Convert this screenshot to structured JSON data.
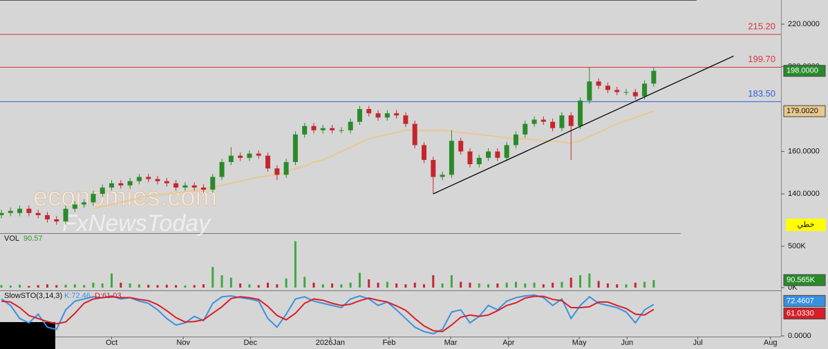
{
  "chart_data": [
    {
      "type": "candlestick",
      "up_color": "#2a8a2a",
      "down_color": "#c4262e",
      "open": [
        130,
        131,
        131,
        133,
        131,
        130,
        128,
        127,
        133,
        135,
        136,
        140,
        143,
        145,
        144,
        146,
        148,
        147,
        146,
        145,
        143,
        144,
        143,
        142,
        148,
        155,
        158,
        157,
        159,
        158,
        152,
        149,
        155,
        168,
        172,
        170,
        171,
        170,
        170,
        174,
        180,
        178,
        176,
        178,
        177,
        173,
        163,
        156,
        148,
        149,
        165,
        160,
        154,
        157,
        160,
        157,
        163,
        168,
        173,
        175,
        174,
        171,
        177,
        172,
        184,
        193,
        191,
        189,
        188,
        188,
        186,
        192
      ],
      "high": [
        132.5,
        133.5,
        134.5,
        134.5,
        132.5,
        131.5,
        129.5,
        134.5,
        136.5,
        137.5,
        141.5,
        144.5,
        146.5,
        146.5,
        147.5,
        149.5,
        149.5,
        148.5,
        147.5,
        146.5,
        145.5,
        145.5,
        144.5,
        149.5,
        156.5,
        162,
        159.5,
        160.5,
        160.5,
        159.5,
        153.5,
        156.5,
        169.5,
        173.5,
        173.5,
        172.5,
        172.5,
        171.5,
        175.5,
        181.5,
        181.5,
        179.5,
        179.5,
        179.5,
        178.5,
        174.5,
        164.5,
        157.5,
        150.5,
        170,
        166.5,
        161.5,
        158.5,
        161.5,
        161.5,
        164.5,
        169.5,
        174.5,
        176.5,
        176.5,
        175.5,
        178.5,
        178.5,
        185.5,
        199.7,
        194.5,
        192.5,
        190.5,
        189.5,
        189.5,
        193.5,
        199.5
      ],
      "low": [
        128.5,
        129.5,
        129.5,
        129.5,
        128.5,
        126.5,
        125.5,
        125.5,
        131.5,
        133.5,
        134.5,
        138.5,
        141.5,
        142.5,
        142.5,
        144.5,
        145.5,
        144.5,
        143.5,
        141.5,
        141.5,
        141.5,
        140.5,
        140.5,
        146.5,
        153.5,
        155.5,
        155.5,
        156.5,
        150.5,
        146.5,
        147.5,
        153.5,
        166.5,
        168.5,
        168.5,
        168.5,
        168.5,
        168.5,
        172.5,
        176.5,
        174.5,
        174.5,
        175.5,
        171.5,
        161.5,
        154.5,
        140,
        146.5,
        147.5,
        158.5,
        152.5,
        152.5,
        155.5,
        155.5,
        155.5,
        161.5,
        166.5,
        171.5,
        172.5,
        169.5,
        169.5,
        156,
        170.5,
        182.5,
        189.5,
        187.5,
        186.5,
        186.5,
        184.5,
        184.5,
        190.5
      ],
      "close": [
        131,
        132,
        133,
        131,
        130,
        128,
        127,
        133,
        135,
        136,
        140,
        143,
        145,
        144,
        146,
        148,
        147,
        146,
        145,
        143,
        144,
        143,
        142,
        148,
        155,
        158,
        157,
        159,
        158,
        152,
        149,
        155,
        168,
        172,
        170,
        171,
        170,
        170,
        174,
        180,
        178,
        176,
        178,
        177,
        173,
        163,
        156,
        148,
        149,
        165,
        160,
        154,
        157,
        160,
        157,
        163,
        168,
        173,
        175,
        174,
        171,
        177,
        172,
        184,
        193,
        191,
        189,
        188,
        188,
        186,
        192,
        198
      ],
      "last_label": "198.0000",
      "moving_average": {
        "color": "#e8c98f",
        "last_label": "179.0020",
        "values": [
          null,
          null,
          null,
          null,
          null,
          null,
          null,
          null,
          null,
          null,
          133,
          134,
          135,
          136,
          137,
          138,
          139,
          139.5,
          140,
          140.5,
          141,
          141.5,
          142,
          143,
          144,
          145,
          146,
          147,
          148,
          148.5,
          149,
          150,
          152,
          153,
          155,
          156,
          158,
          160,
          162,
          164,
          166,
          167,
          168,
          169,
          170,
          170,
          170,
          170,
          170,
          169.5,
          169,
          168.5,
          168,
          167.5,
          167,
          166.5,
          166,
          166,
          165.5,
          165,
          165,
          164.5,
          164,
          165,
          167,
          169,
          171,
          173,
          174.5,
          176,
          177.5,
          179
        ]
      },
      "hlines": [
        {
          "value": 215.2,
          "label": "215.20",
          "color": "#e0303a"
        },
        {
          "value": 199.7,
          "label": "199.70",
          "color": "#e0303a"
        },
        {
          "value": 183.5,
          "label": "183.50",
          "color": "#2f5fd8"
        }
      ],
      "trend_line": {
        "x": [
          47,
          79.7
        ],
        "y": [
          140,
          205
        ],
        "color": "#000000"
      },
      "xlim": [
        -0.15,
        84.7
      ],
      "xticks": [
        {
          "value": 12,
          "label": "Oct"
        },
        {
          "value": 19.8,
          "label": "Nov"
        },
        {
          "value": 27.1,
          "label": "Dec"
        },
        {
          "value": 35.8,
          "label": "2026Jan"
        },
        {
          "value": 42.2,
          "label": "Feb"
        },
        {
          "value": 48.9,
          "label": "Mar"
        },
        {
          "value": 55.2,
          "label": "Apr"
        },
        {
          "value": 62.9,
          "label": "May"
        },
        {
          "value": 68.1,
          "label": "Jun"
        },
        {
          "value": 75.8,
          "label": "Jul"
        },
        {
          "value": 83.7,
          "label": "Aug"
        }
      ],
      "ylim": [
        121.5,
        231.4
      ],
      "yticks": [
        {
          "value": 140,
          "label": "140.0000"
        },
        {
          "value": 160,
          "label": "160.0000"
        },
        {
          "value": 200,
          "label": "200.0000"
        },
        {
          "value": 220,
          "label": "220.0000"
        }
      ]
    },
    {
      "type": "bar",
      "title": "VOL",
      "title_value": "90.57",
      "last_label": "90.565K",
      "values": [
        30,
        25,
        35,
        20,
        30,
        40,
        30,
        35,
        40,
        30,
        60,
        50,
        170,
        60,
        50,
        40,
        35,
        30,
        35,
        30,
        25,
        30,
        40,
        250,
        150,
        120,
        50,
        40,
        30,
        60,
        40,
        110,
        560,
        130,
        60,
        40,
        50,
        40,
        60,
        180,
        100,
        60,
        70,
        50,
        40,
        60,
        40,
        150,
        50,
        150,
        70,
        60,
        50,
        40,
        50,
        60,
        70,
        50,
        60,
        40,
        60,
        70,
        120,
        150,
        170,
        80,
        50,
        40,
        40,
        60,
        70,
        90.565
      ],
      "ylim": [
        0,
        641
      ],
      "yticks": [
        {
          "value": 0,
          "label": "0K"
        },
        {
          "value": 500,
          "label": "500K"
        }
      ]
    },
    {
      "type": "line",
      "title": "SlowSTO(3,14,3)",
      "series": [
        {
          "name": "K:72.46",
          "color": "#3a8fe0",
          "last_label": "72.4607",
          "values": [
            85,
            70,
            40,
            30,
            50,
            20,
            15,
            60,
            80,
            85,
            90,
            88,
            92,
            85,
            88,
            80,
            75,
            60,
            40,
            25,
            30,
            45,
            35,
            75,
            90,
            92,
            88,
            85,
            80,
            40,
            20,
            50,
            85,
            90,
            80,
            75,
            70,
            65,
            85,
            92,
            85,
            70,
            78,
            60,
            40,
            20,
            10,
            5,
            15,
            55,
            60,
            30,
            45,
            70,
            60,
            80,
            88,
            92,
            94,
            88,
            70,
            85,
            40,
            70,
            90,
            75,
            70,
            65,
            55,
            30,
            60,
            72.46
          ]
        },
        {
          "name": "D:61.03",
          "color": "#d81e28",
          "last_label": "61.0330",
          "values": [
            80,
            78,
            65,
            47,
            40,
            33,
            28,
            32,
            52,
            75,
            85,
            88,
            90,
            88,
            88,
            84,
            81,
            72,
            58,
            42,
            32,
            33,
            37,
            52,
            67,
            86,
            90,
            88,
            84,
            68,
            47,
            37,
            52,
            75,
            85,
            82,
            75,
            70,
            73,
            81,
            87,
            82,
            78,
            69,
            59,
            40,
            23,
            12,
            10,
            25,
            43,
            48,
            45,
            48,
            58,
            70,
            76,
            87,
            91,
            91,
            84,
            81,
            65,
            65,
            67,
            78,
            78,
            70,
            63,
            50,
            48,
            61.033
          ]
        }
      ],
      "ylim": [
        0,
        100
      ],
      "yticks": [
        {
          "value": 0,
          "label": "0.0000"
        }
      ]
    }
  ],
  "watermark": [
    "economies.com",
    "FxNewsToday"
  ],
  "style_button": "خطي"
}
